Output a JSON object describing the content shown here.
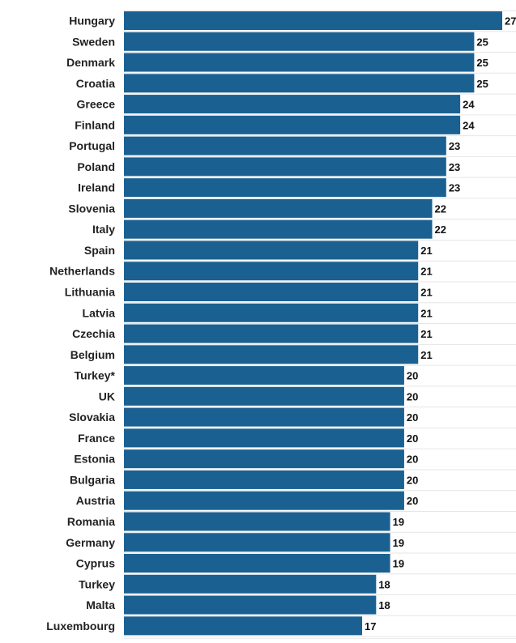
{
  "colors": {
    "bar": "#1a6192",
    "grid": "#e6e6e6",
    "text": "#222222"
  },
  "chart_data": {
    "type": "bar",
    "orientation": "horizontal",
    "title": "",
    "xlabel": "",
    "ylabel": "",
    "xlim": [
      0,
      27
    ],
    "grid": true,
    "categories": [
      "Hungary",
      "Sweden",
      "Denmark",
      "Croatia",
      "Greece",
      "Finland",
      "Portugal",
      "Poland",
      "Ireland",
      "Slovenia",
      "Italy",
      "Spain",
      "Netherlands",
      "Lithuania",
      "Latvia",
      "Czechia",
      "Belgium",
      "Turkey*",
      "UK",
      "Slovakia",
      "France",
      "Estonia",
      "Bulgaria",
      "Austria",
      "Romania",
      "Germany",
      "Cyprus",
      "Turkey",
      "Malta",
      "Luxembourg"
    ],
    "values": [
      27,
      25,
      25,
      25,
      24,
      24,
      23,
      23,
      23,
      22,
      22,
      21,
      21,
      21,
      21,
      21,
      21,
      20,
      20,
      20,
      20,
      20,
      20,
      20,
      19,
      19,
      19,
      18,
      18,
      17
    ]
  }
}
